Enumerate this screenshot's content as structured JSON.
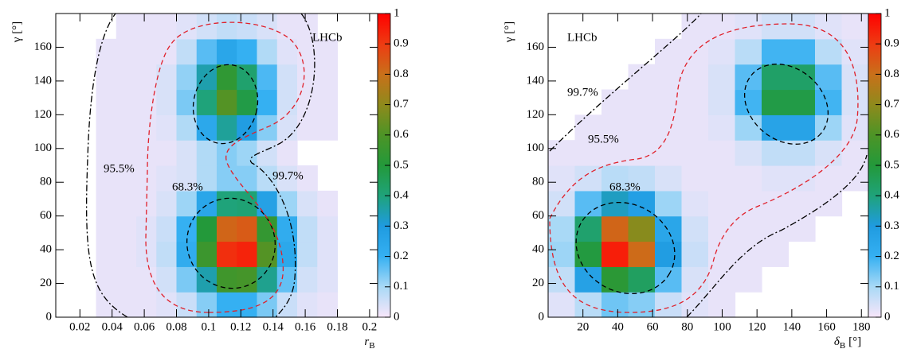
{
  "chart_data": [
    {
      "type": "heatmap",
      "brand": "LHCb",
      "xlabel": {
        "main": "r",
        "sub": "B"
      },
      "ylabel": "γ [°]",
      "xlim": [
        0.005,
        0.205
      ],
      "ylim": [
        0,
        180
      ],
      "xticks": [
        0.02,
        0.04,
        0.06,
        0.08,
        0.1,
        0.12,
        0.14,
        0.16,
        0.18,
        0.2
      ],
      "yticks": [
        0,
        20,
        40,
        60,
        80,
        100,
        120,
        140,
        160
      ],
      "zlim": [
        0,
        1
      ],
      "zticks": [
        0,
        0.1,
        0.2,
        0.3,
        0.4,
        0.5,
        0.6,
        0.7,
        0.8,
        0.9,
        1
      ],
      "colorscale": [
        "#f8e6fa",
        "#a9d9f6",
        "#35b0f2",
        "#1f9be0",
        "#1fa37a",
        "#23993a",
        "#4d9426",
        "#8f8a1c",
        "#c9701a",
        "#ee3b12",
        "#ff0000"
      ],
      "annotations": [
        "95.5%",
        "68.3%",
        "99.7%"
      ],
      "z": [
        [
          0,
          0,
          0.02,
          0.02,
          0.02,
          0.03,
          0.06,
          0.13,
          0.2,
          0.2,
          0.14,
          0.06,
          0.03,
          0.02,
          0,
          0
        ],
        [
          0,
          0,
          0.02,
          0.02,
          0.02,
          0.05,
          0.14,
          0.35,
          0.57,
          0.58,
          0.38,
          0.16,
          0.05,
          0.03,
          0,
          0
        ],
        [
          0,
          0,
          0.02,
          0.02,
          0.03,
          0.07,
          0.22,
          0.56,
          0.92,
          0.94,
          0.61,
          0.24,
          0.07,
          0.03,
          0,
          0
        ],
        [
          0,
          0,
          0.02,
          0.02,
          0.03,
          0.06,
          0.2,
          0.5,
          0.82,
          0.84,
          0.54,
          0.22,
          0.07,
          0.03,
          0,
          0
        ],
        [
          0,
          0,
          0.02,
          0.02,
          0.02,
          0.04,
          0.11,
          0.25,
          0.4,
          0.41,
          0.27,
          0.11,
          0.04,
          0.02,
          0,
          0
        ],
        [
          0,
          0,
          0.02,
          0.02,
          0.02,
          0.03,
          0.04,
          0.09,
          0.13,
          0.13,
          0.08,
          0.04,
          0.02,
          0,
          0,
          0
        ],
        [
          0,
          0,
          0.02,
          0.02,
          0.02,
          0.02,
          0.04,
          0.09,
          0.13,
          0.11,
          0.05,
          0.02,
          0,
          0,
          0,
          0
        ],
        [
          0,
          0,
          0.02,
          0.02,
          0.02,
          0.03,
          0.09,
          0.24,
          0.37,
          0.29,
          0.13,
          0.04,
          0.02,
          0.02,
          0,
          0
        ],
        [
          0,
          0,
          0.02,
          0.02,
          0.02,
          0.04,
          0.14,
          0.4,
          0.61,
          0.48,
          0.2,
          0.05,
          0.02,
          0.02,
          0,
          0
        ],
        [
          0,
          0,
          0.02,
          0.02,
          0.02,
          0.04,
          0.12,
          0.35,
          0.53,
          0.42,
          0.18,
          0.05,
          0.02,
          0.02,
          0,
          0
        ],
        [
          0,
          0,
          0.02,
          0.02,
          0.02,
          0.02,
          0.07,
          0.17,
          0.25,
          0.2,
          0.09,
          0.03,
          0.02,
          0.02,
          0,
          0
        ],
        [
          0,
          0,
          0,
          0.02,
          0.02,
          0.02,
          0.03,
          0.05,
          0.07,
          0.06,
          0.04,
          0.02,
          0.02,
          0,
          0,
          0
        ]
      ]
    },
    {
      "type": "heatmap",
      "brand": "LHCb",
      "xlabel": {
        "main": "δ",
        "sub": "B",
        "unit": "[°]"
      },
      "ylabel": "γ [°]",
      "xlim": [
        0,
        184
      ],
      "ylim": [
        0,
        180
      ],
      "xticks": [
        20,
        40,
        60,
        80,
        100,
        120,
        140,
        160,
        180
      ],
      "yticks": [
        0,
        20,
        40,
        60,
        80,
        100,
        120,
        140,
        160
      ],
      "zlim": [
        0,
        1
      ],
      "zticks": [
        0,
        0.1,
        0.2,
        0.3,
        0.4,
        0.5,
        0.6,
        0.7,
        0.8,
        0.9,
        1
      ],
      "colorscale": [
        "#f8e6fa",
        "#a9d9f6",
        "#35b0f2",
        "#1f9be0",
        "#1fa37a",
        "#23993a",
        "#4d9426",
        "#8f8a1c",
        "#c9701a",
        "#ee3b12",
        "#ff0000"
      ],
      "annotations": [
        "99.7%",
        "95.5%",
        "68.3%"
      ],
      "z": [
        [
          0.03,
          0.08,
          0.15,
          0.13,
          0.06,
          0.03,
          0.02,
          0,
          0,
          0,
          0,
          0
        ],
        [
          0.07,
          0.27,
          0.52,
          0.44,
          0.17,
          0.04,
          0.02,
          0.02,
          0,
          0,
          0,
          0
        ],
        [
          0.11,
          0.49,
          0.95,
          0.81,
          0.29,
          0.06,
          0.02,
          0.02,
          0.02,
          0,
          0,
          0
        ],
        [
          0.1,
          0.42,
          0.82,
          0.69,
          0.25,
          0.05,
          0.02,
          0.02,
          0.02,
          0.02,
          0,
          0
        ],
        [
          0.05,
          0.17,
          0.33,
          0.28,
          0.11,
          0.03,
          0.02,
          0.02,
          0.02,
          0.02,
          0.02,
          0
        ],
        [
          0.03,
          0.05,
          0.08,
          0.07,
          0.04,
          0.02,
          0.02,
          0.02,
          0.03,
          0.03,
          0.02,
          0.02
        ],
        [
          0.02,
          0.02,
          0.02,
          0.02,
          0.02,
          0.02,
          0.02,
          0.04,
          0.07,
          0.07,
          0.04,
          0.02
        ],
        [
          0,
          0.02,
          0.02,
          0.02,
          0.02,
          0.02,
          0.03,
          0.11,
          0.26,
          0.26,
          0.11,
          0.03
        ],
        [
          0,
          0,
          0.02,
          0.02,
          0.02,
          0.02,
          0.04,
          0.19,
          0.48,
          0.48,
          0.19,
          0.04
        ],
        [
          0,
          0,
          0,
          0.02,
          0.02,
          0.02,
          0.04,
          0.17,
          0.43,
          0.43,
          0.17,
          0.04
        ],
        [
          0,
          0,
          0,
          0,
          0.02,
          0.02,
          0.03,
          0.08,
          0.19,
          0.19,
          0.08,
          0.03
        ],
        [
          0,
          0,
          0,
          0,
          0,
          0.02,
          0.02,
          0.03,
          0.05,
          0.05,
          0.03,
          0.02
        ]
      ]
    }
  ]
}
